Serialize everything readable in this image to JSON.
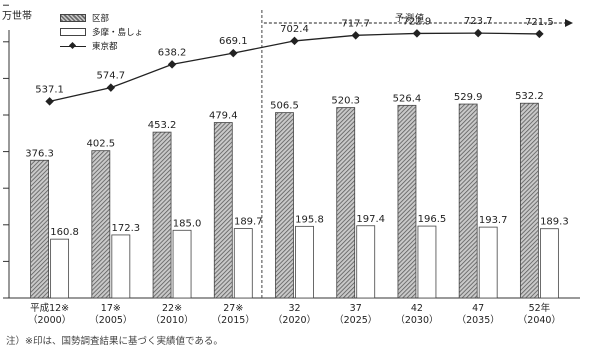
{
  "unit_label": "万世帯",
  "forecast_label": "予測値",
  "note": "注）※印は、国勢調査結果に基づく実績値である。",
  "legend": [
    {
      "label": "区部",
      "style": "hatch"
    },
    {
      "label": "多摩・島しょ",
      "style": "white"
    },
    {
      "label": "東京都",
      "style": "line"
    }
  ],
  "chart_data": {
    "type": "bar",
    "title": "",
    "xlabel": "",
    "ylabel": "",
    "ylim": [
      0,
      800
    ],
    "categories": [
      {
        "label": "平成12※",
        "year": "（2000）"
      },
      {
        "label": "17※",
        "year": "（2005）"
      },
      {
        "label": "22※",
        "year": "（2010）"
      },
      {
        "label": "27※",
        "year": "（2015）"
      },
      {
        "label": "32",
        "year": "（2020）"
      },
      {
        "label": "37",
        "year": "（2025）"
      },
      {
        "label": "42",
        "year": "（2030）"
      },
      {
        "label": "47",
        "year": "（2035）"
      },
      {
        "label": "52年",
        "year": "（2040）"
      }
    ],
    "series": [
      {
        "name": "区部",
        "type": "bar",
        "values": [
          376.3,
          402.5,
          453.2,
          479.4,
          506.5,
          520.3,
          526.4,
          529.9,
          532.2
        ]
      },
      {
        "name": "多摩・島しょ",
        "type": "bar",
        "values": [
          160.8,
          172.3,
          185.0,
          189.7,
          195.8,
          197.4,
          196.5,
          193.7,
          189.3
        ]
      },
      {
        "name": "東京都",
        "type": "line",
        "values": [
          537.1,
          574.7,
          638.2,
          669.1,
          702.4,
          717.7,
          722.9,
          723.7,
          721.5
        ]
      }
    ],
    "forecast_from_index": 4,
    "grid": false
  }
}
